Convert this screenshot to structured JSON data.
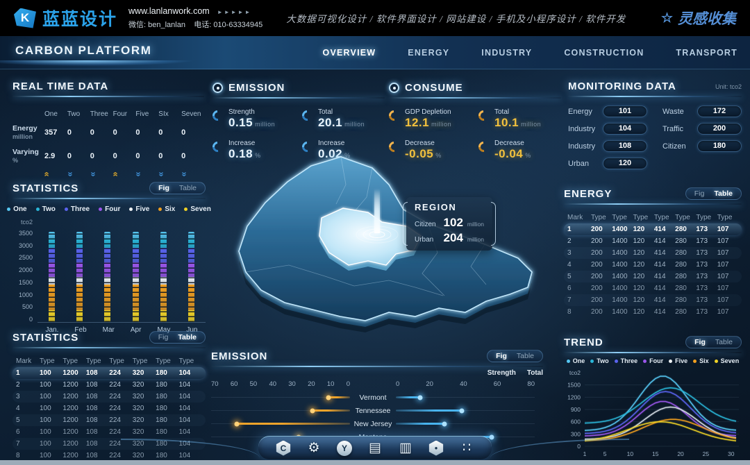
{
  "topbar": {
    "logo_text": "蓝蓝设计",
    "logo_glyph": "K",
    "url": "www.lanlanwork.com",
    "url_arrows": "►►►►►",
    "wechat": "微信: ben_lanlan",
    "phone": "电话: 010-63334945",
    "services": "大数据可视化设计 / 软件界面设计 / 网站建设 / 手机及小程序设计 / 软件开发",
    "collect_star": "☆",
    "collect": "灵感收集"
  },
  "nav": {
    "title": "CARBON PLATFORM",
    "tabs": [
      {
        "label": "OVERVIEW",
        "active": true
      },
      {
        "label": "ENERGY",
        "active": false
      },
      {
        "label": "INDUSTRY",
        "active": false
      },
      {
        "label": "CONSTRUCTION",
        "active": false
      },
      {
        "label": "TRANSPORT",
        "active": false
      }
    ]
  },
  "series_legend": [
    {
      "label": "One",
      "color": "#56c7f2"
    },
    {
      "label": "Two",
      "color": "#2ab6d8"
    },
    {
      "label": "Three",
      "color": "#5a63ee"
    },
    {
      "label": "Four",
      "color": "#9a55ea"
    },
    {
      "label": "Five",
      "color": "#eef2f5"
    },
    {
      "label": "Six",
      "color": "#f09f1f"
    },
    {
      "label": "Seven",
      "color": "#efd226"
    }
  ],
  "realtime": {
    "title": "REAL TIME DATA",
    "columns": [
      "One",
      "Two",
      "Three",
      "Four",
      "Five",
      "SIx",
      "Seven"
    ],
    "rows": [
      {
        "label": "Energy",
        "unit": "million",
        "values": [
          "357",
          "0",
          "0",
          "0",
          "0",
          "0",
          "0"
        ]
      },
      {
        "label": "Varying",
        "unit": "%",
        "values": [
          "2.9",
          "0",
          "0",
          "0",
          "0",
          "0",
          "0"
        ]
      }
    ],
    "trend_arrows": [
      "up",
      "down",
      "down",
      "up",
      "down",
      "down",
      "down"
    ]
  },
  "statistics_fig": {
    "title": "STATISTICS",
    "toggle": {
      "fig": "Fig",
      "table": "Table",
      "active": "fig"
    },
    "unit": "tco2",
    "y_ticks": [
      3500,
      3000,
      2500,
      2000,
      1500,
      1000,
      500,
      0
    ],
    "y_max": 3500,
    "categories": [
      "Jan.",
      "Feb",
      "Mar",
      "Apr",
      "May",
      "Jun"
    ],
    "stack_order_bottom_up": [
      "Seven",
      "Six",
      "Five",
      "Four",
      "Three",
      "Two",
      "One"
    ],
    "stack_values": [
      450,
      950,
      300,
      550,
      550,
      350,
      250
    ]
  },
  "statistics_table": {
    "title": "STATISTICS",
    "toggle": {
      "fig": "Fig",
      "table": "Table",
      "active": "table"
    },
    "headers": [
      "Mark",
      "Type",
      "Type",
      "Type",
      "Type",
      "Type",
      "Type",
      "Type"
    ],
    "rows": [
      [
        "1",
        "100",
        "1200",
        "108",
        "224",
        "320",
        "180",
        "104"
      ],
      [
        "2",
        "100",
        "1200",
        "108",
        "224",
        "320",
        "180",
        "104"
      ],
      [
        "3",
        "100",
        "1200",
        "108",
        "224",
        "320",
        "180",
        "104"
      ],
      [
        "4",
        "100",
        "1200",
        "108",
        "224",
        "320",
        "180",
        "104"
      ],
      [
        "5",
        "100",
        "1200",
        "108",
        "224",
        "320",
        "180",
        "104"
      ],
      [
        "6",
        "100",
        "1200",
        "108",
        "224",
        "320",
        "180",
        "104"
      ],
      [
        "7",
        "100",
        "1200",
        "108",
        "224",
        "320",
        "180",
        "104"
      ],
      [
        "8",
        "100",
        "1200",
        "108",
        "224",
        "320",
        "180",
        "104"
      ]
    ]
  },
  "emission_summary": {
    "title": "EMISSION",
    "stats": [
      {
        "label": "Strength",
        "value": "0.15",
        "unit": "million"
      },
      {
        "label": "Total",
        "value": "20.1",
        "unit": "million"
      },
      {
        "label": "Increase",
        "value": "0.18",
        "unit": "%"
      },
      {
        "label": "Increase",
        "value": "0.02",
        "unit": "%"
      }
    ]
  },
  "consume_summary": {
    "title": "CONSUME",
    "stats": [
      {
        "label": "GDP Depletion",
        "value": "12.1",
        "unit": "million"
      },
      {
        "label": "Total",
        "value": "10.1",
        "unit": "million"
      },
      {
        "label": "Decrease",
        "value": "-0.05",
        "unit": "%"
      },
      {
        "label": "Decrease",
        "value": "-0.04",
        "unit": "%"
      }
    ]
  },
  "region_tooltip": {
    "title": "REGION",
    "rows": [
      {
        "label": "Citizen",
        "value": "102",
        "unit": "million"
      },
      {
        "label": "Urban",
        "value": "204",
        "unit": "million"
      }
    ]
  },
  "monitoring": {
    "title": "MONITORING DATA",
    "unit_note": "Unit: tco2",
    "left_items": [
      {
        "label": "Energy",
        "value": "101"
      },
      {
        "label": "Industry",
        "value": "104"
      },
      {
        "label": "Industry",
        "value": "108"
      },
      {
        "label": "Urban",
        "value": "120"
      }
    ],
    "right_items": [
      {
        "label": "Waste",
        "value": "172"
      },
      {
        "label": "Traffic",
        "value": "200"
      },
      {
        "label": "Citizen",
        "value": "180"
      }
    ]
  },
  "energy_table": {
    "title": "ENERGY",
    "toggle": {
      "fig": "Fig",
      "table": "Table",
      "active": "table"
    },
    "headers": [
      "Mark",
      "Type",
      "Type",
      "Type",
      "Type",
      "Type",
      "Type",
      "Type"
    ],
    "rows": [
      [
        "1",
        "200",
        "1400",
        "120",
        "414",
        "280",
        "173",
        "107"
      ],
      [
        "2",
        "200",
        "1400",
        "120",
        "414",
        "280",
        "173",
        "107"
      ],
      [
        "3",
        "200",
        "1400",
        "120",
        "414",
        "280",
        "173",
        "107"
      ],
      [
        "4",
        "200",
        "1400",
        "120",
        "414",
        "280",
        "173",
        "107"
      ],
      [
        "5",
        "200",
        "1400",
        "120",
        "414",
        "280",
        "173",
        "107"
      ],
      [
        "6",
        "200",
        "1400",
        "120",
        "414",
        "280",
        "173",
        "107"
      ],
      [
        "7",
        "200",
        "1400",
        "120",
        "414",
        "280",
        "173",
        "107"
      ],
      [
        "8",
        "200",
        "1400",
        "120",
        "414",
        "280",
        "173",
        "107"
      ]
    ]
  },
  "emission_chart": {
    "title": "EMISSION",
    "toggle": {
      "fig": "Fig",
      "table": "Table",
      "active": "fig"
    },
    "legend": [
      {
        "label": "Strength",
        "color": "#f0a42a"
      },
      {
        "label": "Total",
        "color": "#49b4ee"
      }
    ],
    "left_axis_ticks": [
      "70",
      "60",
      "50",
      "40",
      "30",
      "20",
      "10",
      "0"
    ],
    "right_axis_ticks": [
      "0",
      "20",
      "40",
      "60",
      "80"
    ],
    "left_max": 70,
    "right_max": 80,
    "categories": [
      "Vermont",
      "Tennessee",
      "New Jersey",
      "Montana"
    ],
    "strength": [
      11,
      19,
      57,
      26
    ],
    "total": [
      14,
      38,
      28,
      55
    ]
  },
  "trend": {
    "title": "TREND",
    "toggle": {
      "fig": "Fig",
      "table": "Table",
      "active": "fig"
    },
    "unit": "tco2",
    "y_ticks": [
      1500,
      1200,
      900,
      600,
      300,
      0
    ],
    "y_max": 1800,
    "x_ticks": [
      1,
      5,
      10,
      15,
      20,
      25,
      30
    ],
    "series": [
      {
        "name": "One",
        "color": "#56c7f2",
        "base": 380,
        "peak": 1720,
        "center": 16.5,
        "width": 4.8
      },
      {
        "name": "Two",
        "color": "#2ab6d8",
        "base": 560,
        "peak": 1430,
        "center": 18,
        "width": 5.5
      },
      {
        "name": "Three",
        "color": "#5a63ee",
        "base": 310,
        "peak": 1340,
        "center": 17,
        "width": 5
      },
      {
        "name": "Four",
        "color": "#9a55ea",
        "base": 250,
        "peak": 1100,
        "center": 16.5,
        "width": 4.8
      },
      {
        "name": "Five",
        "color": "#d9e2ea",
        "base": 170,
        "peak": 960,
        "center": 18,
        "width": 5.2
      },
      {
        "name": "Six",
        "color": "#f09f1f",
        "base": 130,
        "peak": 660,
        "center": 18.5,
        "width": 6
      },
      {
        "name": "Seven",
        "color": "#efd226",
        "base": 100,
        "peak": 600,
        "center": 16,
        "width": 6.5
      }
    ]
  },
  "dock": {
    "icons": [
      {
        "name": "home-icon",
        "kind": "badge",
        "shape": "hex",
        "glyph": "C"
      },
      {
        "name": "settings-gear-icon",
        "kind": "glyph",
        "glyph": "⚙"
      },
      {
        "name": "energy-badge-icon",
        "kind": "badge",
        "shape": "circle",
        "glyph": "Y"
      },
      {
        "name": "kiosk-icon",
        "kind": "glyph",
        "glyph": "▤"
      },
      {
        "name": "bar-chart-icon",
        "kind": "glyph",
        "glyph": "▥"
      },
      {
        "name": "nut-icon",
        "kind": "badge",
        "shape": "hex",
        "glyph": "●"
      },
      {
        "name": "apps-grid-icon",
        "kind": "glyph",
        "glyph": "∷"
      }
    ]
  }
}
